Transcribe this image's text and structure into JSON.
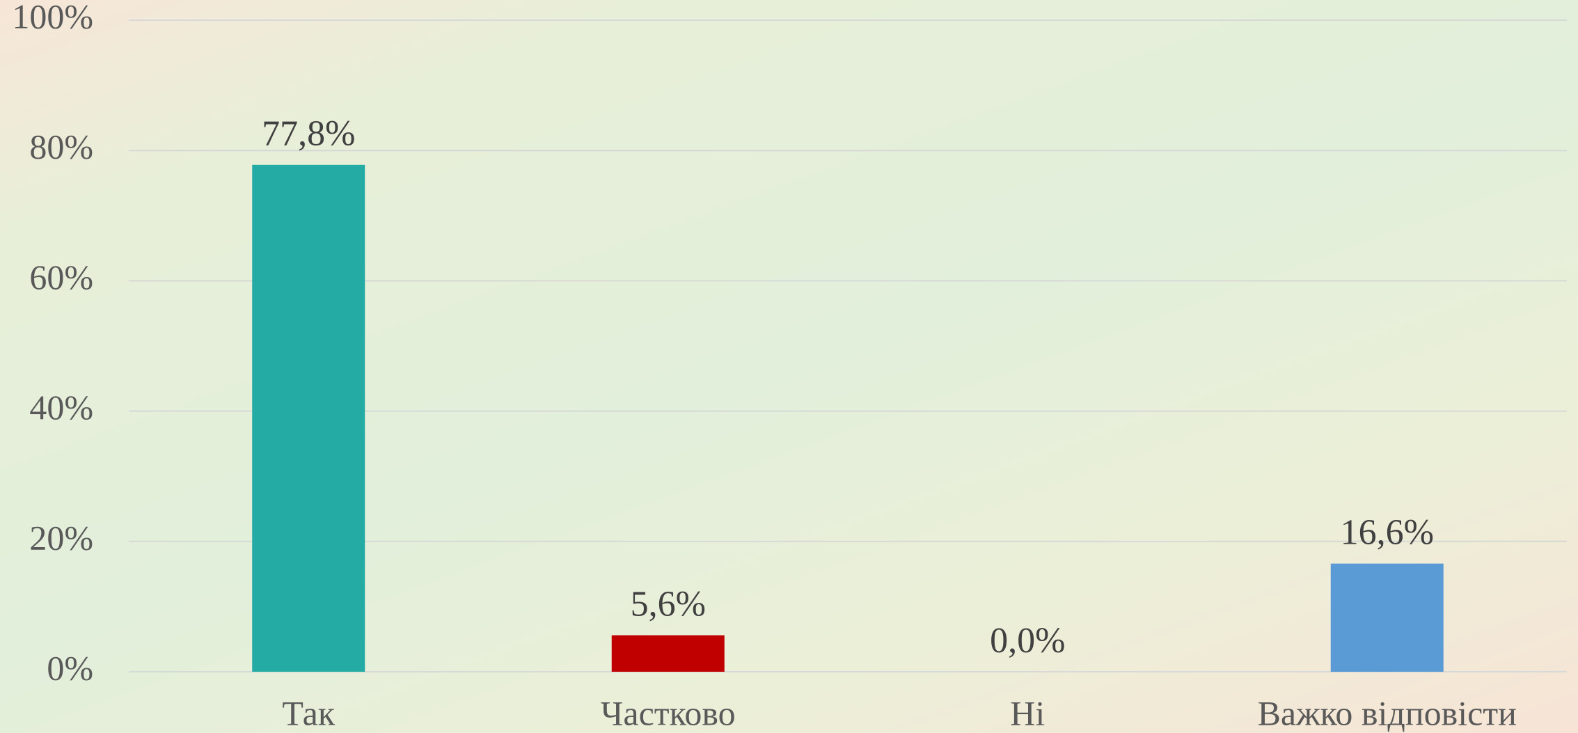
{
  "chart_data": {
    "type": "bar",
    "categories": [
      "Так",
      "Частково",
      "Ні",
      "Важко відповісти"
    ],
    "values": [
      77.8,
      5.6,
      0,
      16.6
    ],
    "value_labels": [
      "77,8%",
      "5,6%",
      "0,0%",
      "16,6%"
    ],
    "colors": [
      "#23aba4",
      "#c00000",
      "#a5a5a5",
      "#5b9bd5"
    ],
    "ylim": [
      0,
      100
    ],
    "yticks": [
      {
        "value": 0,
        "label": "0%"
      },
      {
        "value": 20,
        "label": "20%"
      },
      {
        "value": 40,
        "label": "40%"
      },
      {
        "value": 60,
        "label": "60%"
      },
      {
        "value": 80,
        "label": "80%"
      },
      {
        "value": 100,
        "label": "100%"
      }
    ],
    "grid": true
  }
}
